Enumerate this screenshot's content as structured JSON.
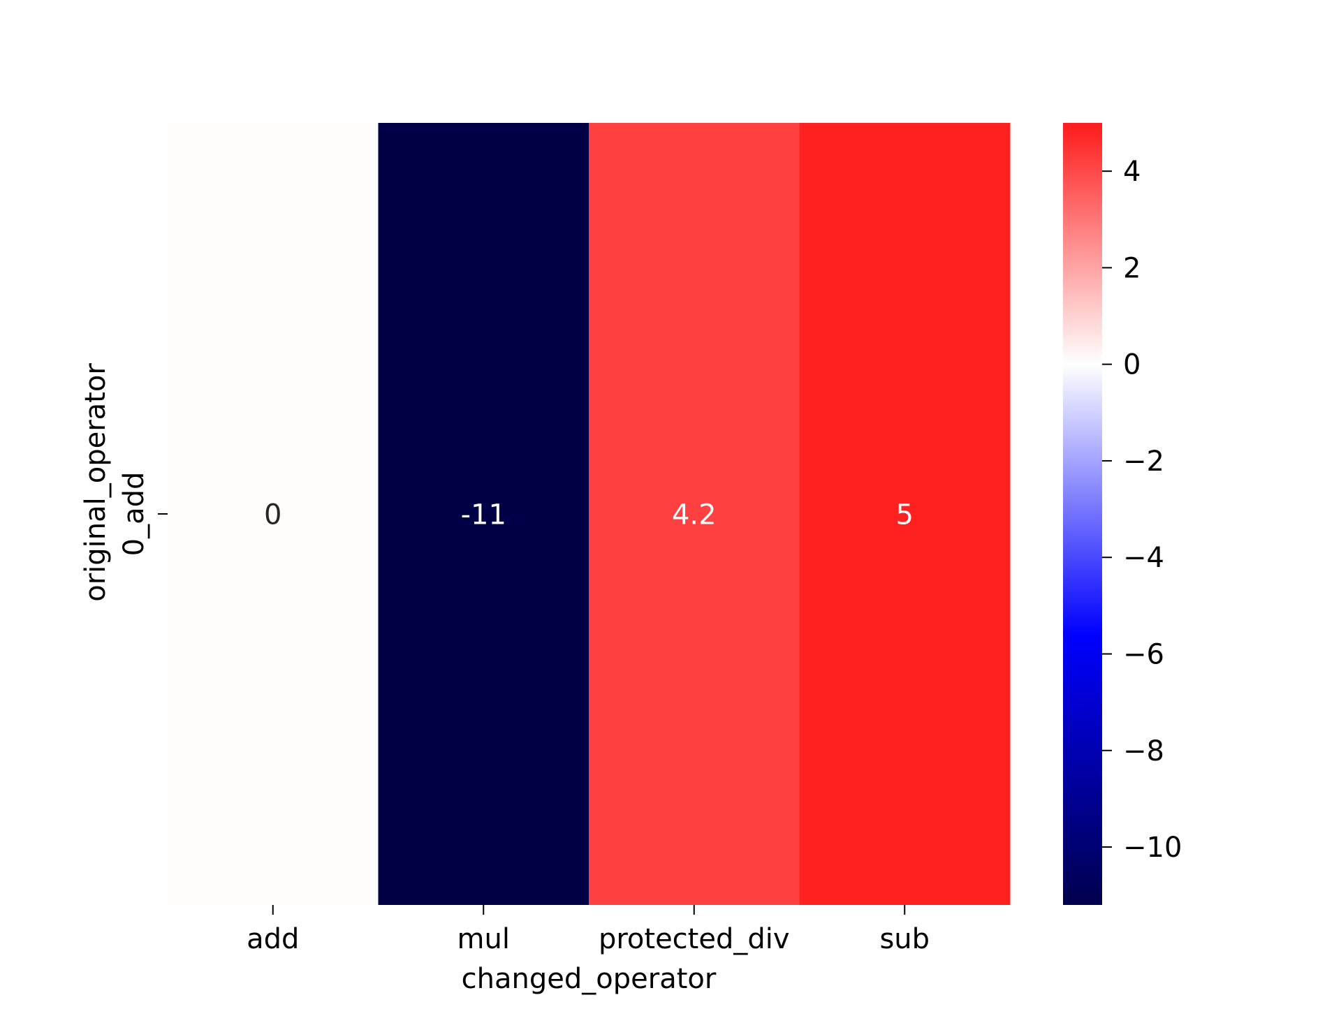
{
  "chart_data": {
    "type": "heatmap",
    "rows": [
      "0_add"
    ],
    "columns": [
      "add",
      "mul",
      "protected_div",
      "sub"
    ],
    "values": [
      [
        0,
        -11,
        4.2,
        5
      ]
    ],
    "cell_labels": [
      [
        "0",
        "-11",
        "4.2",
        "5"
      ]
    ],
    "xlabel": "changed_operator",
    "ylabel": "original_operator",
    "colormap": "seismic",
    "colormap_stops": [
      "#00004c",
      "#0000ff",
      "#ffffff",
      "#ff0000",
      "#800000"
    ],
    "colorbar_range": [
      -11.2,
      5
    ],
    "colorbar_ticks": [
      4,
      2,
      0,
      -2,
      -4,
      -6,
      -8,
      -10
    ],
    "colorbar_tick_labels": [
      "4",
      "2",
      "0",
      "−2",
      "−4",
      "−6",
      "−8",
      "−10"
    ],
    "cell_colors": [
      "#fffcfc",
      "#000046",
      "#ff4040",
      "#ff2020"
    ],
    "label_colors": [
      "#262626",
      "#ffffff",
      "#ffffff",
      "#ffffff"
    ]
  }
}
